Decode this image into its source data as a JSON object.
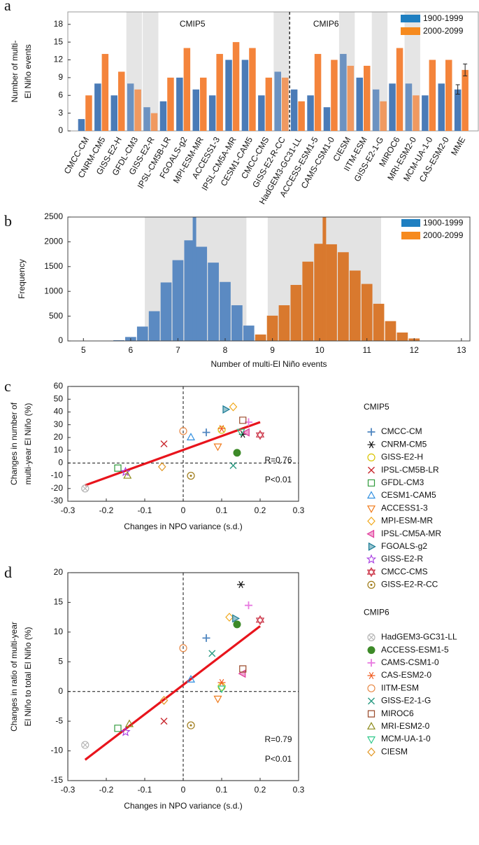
{
  "chart_data": [
    {
      "type": "bar",
      "panel": "a",
      "ylabel": [
        "Number of multi-",
        "El Niño events"
      ],
      "categories": [
        "CMCC-CM",
        "CNRM-CM5",
        "GISS-E2-H",
        "GFDL-CM3",
        "GISS-E2-R",
        "IPSL-CM5B-LR",
        "FGOALS-g2",
        "MPI-ESM-MR",
        "ACCESS1-3",
        "IPSL-CM5A-MR",
        "CESM1-CAM5",
        "CMCC-CMS",
        "GISS-E2-R-CC",
        "HadGEM3-GC31-LL",
        "ACCESS-ESM1-5",
        "CAMS-CSM1-0",
        "CIESM",
        "IITM-ESM",
        "GISS-E2-1-G",
        "MIROC6",
        "MRI-ESM2-0",
        "MCM-UA-1-0",
        "CAS-ESM2-0",
        "MME"
      ],
      "shaded": [
        false,
        false,
        false,
        true,
        true,
        false,
        false,
        false,
        false,
        false,
        false,
        false,
        true,
        false,
        false,
        false,
        true,
        false,
        true,
        false,
        true,
        false,
        false,
        false
      ],
      "groups": [
        {
          "name": "CMIP5",
          "count": 13
        },
        {
          "name": "CMIP6",
          "count": 10
        }
      ],
      "series": [
        {
          "name": "1900-1999",
          "color": "#4a7bb7",
          "values": [
            2,
            8,
            6,
            8,
            4,
            5,
            9,
            7,
            6,
            12,
            12,
            6,
            10,
            7,
            6,
            4,
            13,
            9,
            7,
            8,
            8,
            6,
            8,
            7
          ],
          "errors": [
            null,
            null,
            null,
            null,
            null,
            null,
            null,
            null,
            null,
            null,
            null,
            null,
            null,
            null,
            null,
            null,
            null,
            null,
            null,
            null,
            null,
            null,
            null,
            0.8
          ]
        },
        {
          "name": "2000-2099",
          "color": "#f4843b",
          "values": [
            6,
            13,
            10,
            7,
            3,
            9,
            14,
            9,
            13,
            15,
            14,
            9,
            9,
            5,
            13,
            12,
            11,
            11,
            5,
            14,
            6,
            12,
            12,
            10.3
          ],
          "errors": [
            null,
            null,
            null,
            null,
            null,
            null,
            null,
            null,
            null,
            null,
            null,
            null,
            null,
            null,
            null,
            null,
            null,
            null,
            null,
            null,
            null,
            null,
            null,
            1.0
          ]
        }
      ],
      "ylim": [
        0,
        20.1
      ],
      "yticks": [
        0,
        3,
        6,
        9,
        12,
        15,
        18
      ]
    },
    {
      "type": "histogram",
      "panel": "b",
      "xlabel": "Number of multi-El Niño events",
      "ylabel": "Frequency",
      "bins": [
        5.625,
        5.875,
        6.125,
        6.375,
        6.625,
        6.875,
        7.125,
        7.375,
        7.625,
        7.875,
        8.125,
        8.375,
        8.625,
        8.875,
        9.125,
        9.375,
        9.625,
        9.875,
        10.125,
        10.375,
        10.625,
        10.875,
        11.125,
        11.375,
        11.625,
        11.875,
        12.125,
        12.375
      ],
      "series": [
        {
          "name": "1900-1999",
          "color": "#5b8ac2",
          "legend_color": "#1f7fc1",
          "mean": 7.35,
          "spread": [
            6.3,
            8.45
          ],
          "values": [
            15,
            80,
            290,
            600,
            1180,
            1630,
            2030,
            1900,
            1580,
            1190,
            720,
            310,
            70,
            0,
            0,
            0,
            0,
            0,
            0,
            0,
            0,
            0,
            0,
            0,
            0,
            0,
            0
          ]
        },
        {
          "name": "2000-2099",
          "color": "#d9792e",
          "legend_color": "#f68a1e",
          "mean": 10.1,
          "spread": [
            8.9,
            11.3
          ],
          "values": [
            0,
            0,
            0,
            0,
            0,
            0,
            0,
            0,
            0,
            0,
            0,
            0,
            130,
            510,
            720,
            1130,
            1600,
            1960,
            1950,
            1790,
            1420,
            1150,
            750,
            400,
            170,
            50,
            0
          ]
        }
      ],
      "xlim": [
        4.67,
        13.18
      ],
      "xticks": [
        5,
        6,
        7,
        8,
        9,
        10,
        11,
        12,
        13
      ],
      "ylim": [
        0,
        2500
      ],
      "yticks": [
        0,
        500,
        1000,
        1500,
        2000,
        2500
      ]
    },
    {
      "type": "scatter",
      "panel": "c",
      "xlabel": "Changes in NPO variance (s.d.)",
      "ylabel": [
        "Changes in number of",
        "multi-year El Niño (%)"
      ],
      "xlim": [
        -0.3,
        0.3
      ],
      "xticks": [
        -0.3,
        -0.2,
        -0.1,
        0,
        0.1,
        0.2,
        0.3
      ],
      "ylim": [
        -30,
        60
      ],
      "yticks": [
        -30,
        -20,
        -10,
        0,
        10,
        20,
        30,
        40,
        50,
        60
      ],
      "zero_lines": true,
      "fit": {
        "color": "#e8141c",
        "x": [
          -0.255,
          0.2
        ],
        "y": [
          -17.5,
          32
        ]
      },
      "annotations": [
        "R=0.76",
        "P<0.01"
      ],
      "legend_groups": [
        {
          "name": "CMIP5",
          "count": 13
        },
        {
          "name": "CMIP6",
          "count": 10
        }
      ],
      "series": [
        {
          "name": "CMCC-CM",
          "color": "#4f86c0",
          "marker": "plus",
          "x": [
            0.06
          ],
          "y": [
            24
          ]
        },
        {
          "name": "CNRM-CM5",
          "color": "#111111",
          "marker": "asterisk",
          "x": [
            0.155
          ],
          "y": [
            22.5
          ]
        },
        {
          "name": "GISS-E2-H",
          "color": "#d9c400",
          "marker": "circle",
          "x": [
            0.1
          ],
          "y": [
            26
          ]
        },
        {
          "name": "IPSL-CM5B-LR",
          "color": "#c8282e",
          "marker": "x",
          "x": [
            -0.05
          ],
          "y": [
            15
          ]
        },
        {
          "name": "GFDL-CM3",
          "color": "#2e9a3a",
          "marker": "square",
          "x": [
            -0.17
          ],
          "y": [
            -4
          ]
        },
        {
          "name": "CESM1-CAM5",
          "color": "#2f8ee0",
          "marker": "triangle-up",
          "x": [
            0.02
          ],
          "y": [
            20
          ]
        },
        {
          "name": "ACCESS1-3",
          "color": "#f07a1a",
          "marker": "triangle-down",
          "x": [
            0.09
          ],
          "y": [
            13
          ]
        },
        {
          "name": "MPI-ESM-MR",
          "color": "#f0a81c",
          "marker": "diamond",
          "x": [
            0.13
          ],
          "y": [
            44
          ]
        },
        {
          "name": "IPSL-CM5A-MR",
          "color": "#e0389a",
          "marker": "triangle-left",
          "x": [
            0.165
          ],
          "y": [
            24
          ]
        },
        {
          "name": "FGOALS-g2",
          "color": "#197b94",
          "marker": "triangle-right",
          "x": [
            0.11
          ],
          "y": [
            42
          ]
        },
        {
          "name": "GISS-E2-R",
          "color": "#a63be0",
          "marker": "star",
          "x": [
            -0.15
          ],
          "y": [
            -7
          ]
        },
        {
          "name": "CMCC-CMS",
          "color": "#c8283c",
          "marker": "hexagram",
          "x": [
            0.2
          ],
          "y": [
            22
          ]
        },
        {
          "name": "GISS-E2-R-CC",
          "color": "#9e7a16",
          "marker": "circle-dot",
          "x": [
            0.02
          ],
          "y": [
            -10
          ]
        },
        {
          "name": "HadGEM3-GC31-LL",
          "color": "#b4b4b4",
          "marker": "circle-x",
          "x": [
            -0.255
          ],
          "y": [
            -20
          ]
        },
        {
          "name": "ACCESS-ESM1-5",
          "color": "#3d8a28",
          "marker": "dot",
          "x": [
            0.14
          ],
          "y": [
            8
          ]
        },
        {
          "name": "CAMS-CSM1-0",
          "color": "#e87ae0",
          "marker": "plus",
          "x": [
            0.17
          ],
          "y": [
            32
          ]
        },
        {
          "name": "CAS-ESM2-0",
          "color": "#f05a1e",
          "marker": "asterisk",
          "x": [
            0.1
          ],
          "y": [
            27
          ]
        },
        {
          "name": "IITM-ESM",
          "color": "#e88a48",
          "marker": "circle",
          "x": [
            0
          ],
          "y": [
            25
          ]
        },
        {
          "name": "GISS-E2-1-G",
          "color": "#2a9a82",
          "marker": "x",
          "x": [
            0.13
          ],
          "y": [
            -2
          ]
        },
        {
          "name": "MIROC6",
          "color": "#9a4a2a",
          "marker": "square",
          "x": [
            0.155
          ],
          "y": [
            33.5
          ]
        },
        {
          "name": "MRI-ESM2-0",
          "color": "#8c8a1a",
          "marker": "triangle-up",
          "x": [
            -0.145
          ],
          "y": [
            -10
          ]
        },
        {
          "name": "MCM-UA-1-0",
          "color": "#2ec88a",
          "marker": "triangle-down",
          "x": [
            0.15
          ],
          "y": [
            24.5
          ]
        },
        {
          "name": "CIESM",
          "color": "#e39a2a",
          "marker": "diamond",
          "x": [
            -0.055
          ],
          "y": [
            -3
          ]
        }
      ]
    },
    {
      "type": "scatter",
      "panel": "d",
      "xlabel": "Changes in NPO variance (s.d.)",
      "ylabel": [
        "Changes in ratio of multi-year",
        "El Niño  to total El Niño (%)"
      ],
      "xlim": [
        -0.3,
        0.3
      ],
      "xticks": [
        -0.3,
        -0.2,
        -0.1,
        0,
        0.1,
        0.2,
        0.3
      ],
      "ylim": [
        -15,
        20
      ],
      "yticks": [
        -15,
        -10,
        -5,
        0,
        5,
        10,
        15,
        20
      ],
      "zero_lines": true,
      "fit": {
        "color": "#e8141c",
        "x": [
          -0.255,
          0.2
        ],
        "y": [
          -11.5,
          11
        ]
      },
      "annotations": [
        "R=0.79",
        "P<0.01"
      ],
      "series": [
        {
          "color": "#4f86c0",
          "marker": "plus",
          "x": [
            0.06
          ],
          "y": [
            9
          ]
        },
        {
          "color": "#111111",
          "marker": "asterisk",
          "x": [
            0.15
          ],
          "y": [
            18
          ]
        },
        {
          "color": "#d9c400",
          "marker": "circle",
          "x": [
            0.1
          ],
          "y": [
            0.8
          ]
        },
        {
          "color": "#c8282e",
          "marker": "x",
          "x": [
            -0.05
          ],
          "y": [
            -5
          ]
        },
        {
          "color": "#2e9a3a",
          "marker": "square",
          "x": [
            -0.17
          ],
          "y": [
            -6.2
          ]
        },
        {
          "color": "#2f8ee0",
          "marker": "triangle-up",
          "x": [
            0.02
          ],
          "y": [
            2
          ]
        },
        {
          "color": "#f07a1a",
          "marker": "triangle-down",
          "x": [
            0.09
          ],
          "y": [
            -1.2
          ]
        },
        {
          "color": "#f0a81c",
          "marker": "diamond",
          "x": [
            0.12
          ],
          "y": [
            12.5
          ]
        },
        {
          "color": "#e0389a",
          "marker": "triangle-left",
          "x": [
            0.155
          ],
          "y": [
            3
          ]
        },
        {
          "color": "#197b94",
          "marker": "triangle-right",
          "x": [
            0.135
          ],
          "y": [
            12.3
          ]
        },
        {
          "color": "#a63be0",
          "marker": "star",
          "x": [
            -0.15
          ],
          "y": [
            -6.8
          ]
        },
        {
          "color": "#c8283c",
          "marker": "hexagram",
          "x": [
            0.2
          ],
          "y": [
            12
          ]
        },
        {
          "color": "#9e7a16",
          "marker": "circle-dot",
          "x": [
            0.02
          ],
          "y": [
            -5.7
          ]
        },
        {
          "color": "#b4b4b4",
          "marker": "circle-x",
          "x": [
            -0.255
          ],
          "y": [
            -9
          ]
        },
        {
          "color": "#3d8a28",
          "marker": "dot",
          "x": [
            0.14
          ],
          "y": [
            11.3
          ]
        },
        {
          "color": "#e87ae0",
          "marker": "plus",
          "x": [
            0.17
          ],
          "y": [
            14.5
          ]
        },
        {
          "color": "#f05a1e",
          "marker": "asterisk",
          "x": [
            0.1
          ],
          "y": [
            1.5
          ]
        },
        {
          "color": "#e88a48",
          "marker": "circle",
          "x": [
            0
          ],
          "y": [
            7.3
          ]
        },
        {
          "color": "#2a9a82",
          "marker": "x",
          "x": [
            0.075
          ],
          "y": [
            6.4
          ]
        },
        {
          "color": "#9a4a2a",
          "marker": "square",
          "x": [
            0.155
          ],
          "y": [
            3.8
          ]
        },
        {
          "color": "#8c8a1a",
          "marker": "triangle-up",
          "x": [
            -0.14
          ],
          "y": [
            -5.5
          ]
        },
        {
          "color": "#2ec88a",
          "marker": "triangle-down",
          "x": [
            0.1
          ],
          "y": [
            0.5
          ]
        },
        {
          "color": "#e39a2a",
          "marker": "diamond",
          "x": [
            -0.05
          ],
          "y": [
            -1.5
          ]
        }
      ]
    }
  ]
}
